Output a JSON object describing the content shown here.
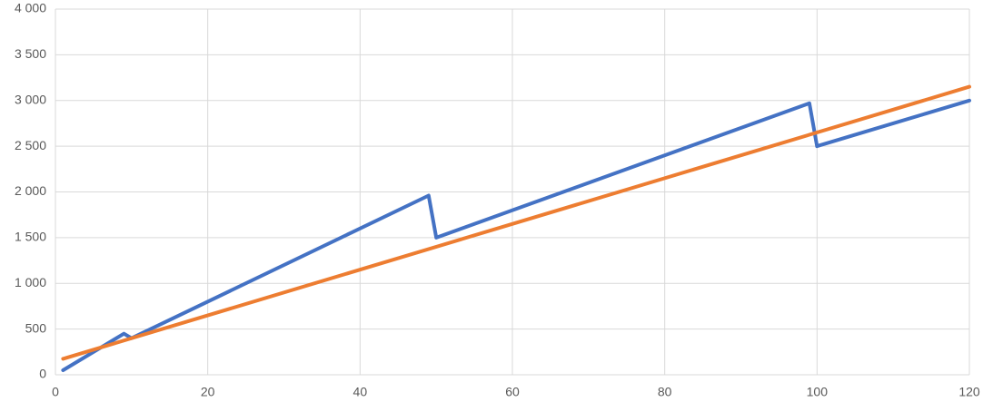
{
  "chart_data": {
    "type": "line",
    "series": [
      {
        "color": "#4472c4",
        "x": [
          1,
          9,
          10,
          49,
          50,
          99,
          100,
          120
        ],
        "values": [
          50,
          450,
          400,
          1960,
          1500,
          2970,
          2500,
          3000
        ]
      },
      {
        "color": "#ed7d31",
        "x": [
          1,
          120
        ],
        "values": [
          175,
          3150
        ]
      }
    ],
    "xlim": [
      0,
      120
    ],
    "xticks": [
      0,
      20,
      40,
      60,
      80,
      100,
      120
    ],
    "ylim": [
      0,
      4000
    ],
    "yticks": [
      0,
      500,
      {
        "value": 1000,
        "label": "1 000"
      },
      {
        "value": 1500,
        "label": "1 500"
      },
      {
        "value": 2000,
        "label": "2 000"
      },
      {
        "value": 2500,
        "label": "2 500"
      },
      {
        "value": 3000,
        "label": "3 000"
      },
      {
        "value": 3500,
        "label": "3 500"
      },
      {
        "value": 4000,
        "label": "4 000"
      }
    ],
    "grid": true
  }
}
